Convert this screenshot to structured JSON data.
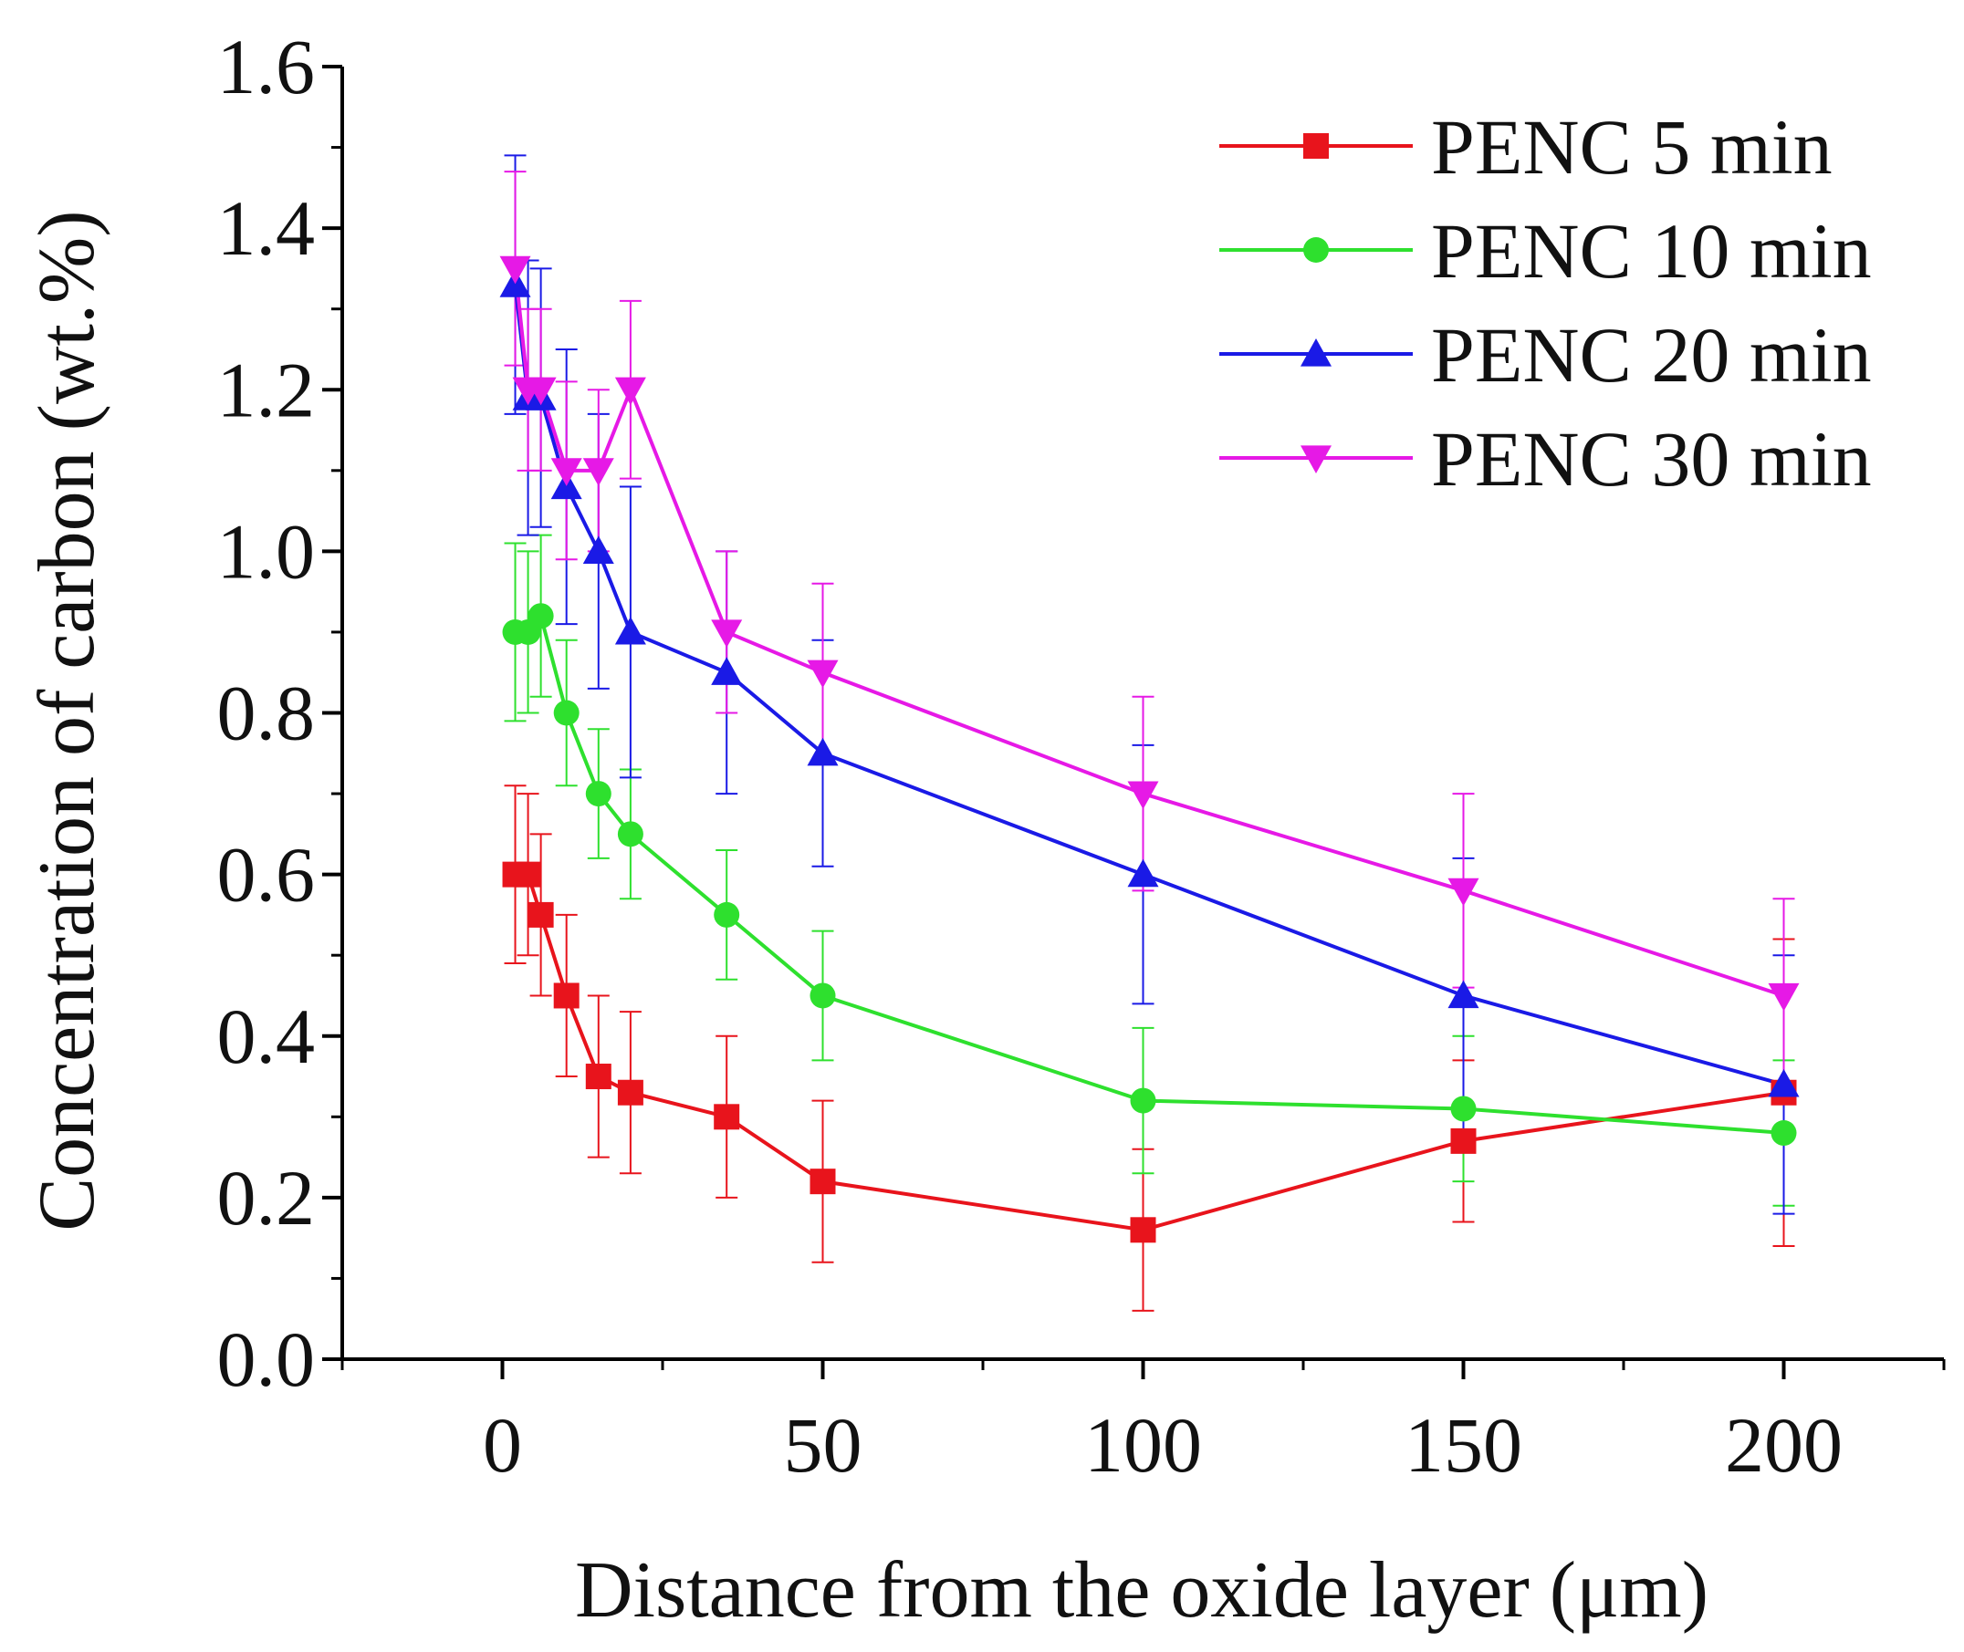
{
  "chart_data": {
    "type": "line",
    "title": "",
    "xlabel": "Distance from the oxide layer (μm)",
    "ylabel": "Concentration of carbon (wt.%)",
    "xlim": [
      -25,
      225
    ],
    "ylim": [
      0,
      1.6
    ],
    "x_ticks": [
      0,
      50,
      100,
      150,
      200
    ],
    "x_tick_labels": [
      "0",
      "50",
      "100",
      "150",
      "200"
    ],
    "y_ticks": [
      0,
      0.2,
      0.4,
      0.6,
      0.8,
      1.0,
      1.2,
      1.4,
      1.6
    ],
    "y_tick_labels": [
      "0.0",
      "0.2",
      "0.4",
      "0.6",
      "0.8",
      "1.0",
      "1.2",
      "1.4",
      "1.6"
    ],
    "grid": false,
    "legend_position": "top-right",
    "x": [
      2,
      4,
      6,
      10,
      15,
      20,
      35,
      50,
      100,
      150,
      200
    ],
    "series": [
      {
        "name": "PENC 5 min",
        "color": "#e8141c",
        "marker": "square",
        "values": [
          0.6,
          0.6,
          0.55,
          0.45,
          0.35,
          0.33,
          0.3,
          0.22,
          0.16,
          0.27,
          0.33
        ],
        "errors": [
          0.11,
          0.1,
          0.1,
          0.1,
          0.1,
          0.1,
          0.1,
          0.1,
          0.1,
          0.1,
          0.19
        ]
      },
      {
        "name": "PENC 10 min",
        "color": "#2ee02e",
        "marker": "circle",
        "values": [
          0.9,
          0.9,
          0.92,
          0.8,
          0.7,
          0.65,
          0.55,
          0.45,
          0.32,
          0.31,
          0.28
        ],
        "errors": [
          0.11,
          0.1,
          0.1,
          0.09,
          0.08,
          0.08,
          0.08,
          0.08,
          0.09,
          0.09,
          0.09
        ]
      },
      {
        "name": "PENC 20 min",
        "color": "#1a1ae6",
        "marker": "triangle-up",
        "values": [
          1.33,
          1.19,
          1.19,
          1.08,
          1.0,
          0.9,
          0.85,
          0.75,
          0.6,
          0.45,
          0.34
        ],
        "errors": [
          0.16,
          0.17,
          0.16,
          0.17,
          0.17,
          0.18,
          0.15,
          0.14,
          0.16,
          0.17,
          0.16
        ]
      },
      {
        "name": "PENC 30 min",
        "color": "#e619e6",
        "marker": "triangle-down",
        "values": [
          1.35,
          1.2,
          1.2,
          1.1,
          1.1,
          1.2,
          0.9,
          0.85,
          0.7,
          0.58,
          0.45
        ],
        "errors": [
          0.12,
          0.1,
          0.1,
          0.11,
          0.1,
          0.11,
          0.1,
          0.11,
          0.12,
          0.12,
          0.12
        ]
      }
    ]
  }
}
